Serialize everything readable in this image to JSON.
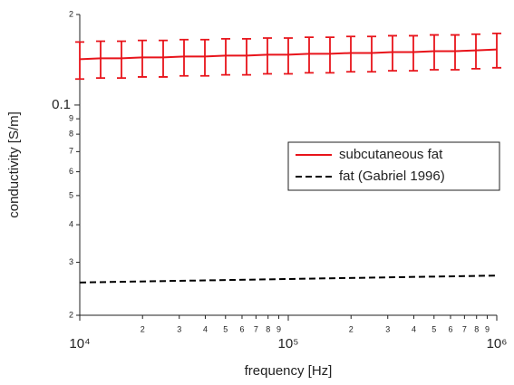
{
  "chart_data": {
    "type": "line",
    "x_label": "frequency [Hz]",
    "y_label": "conductivity [S/m]",
    "xscale": "log",
    "yscale": "log",
    "xlim": [
      10000,
      1000000
    ],
    "ylim": [
      0.02,
      0.2
    ],
    "xticks": [
      {
        "value": 10000,
        "label": "10⁴"
      },
      20000,
      30000,
      40000,
      50000,
      60000,
      70000,
      80000,
      90000,
      {
        "value": 100000,
        "label": "10⁵"
      },
      {
        "value": 200000,
        "label": "2"
      },
      {
        "value": 300000,
        "label": "3"
      },
      {
        "value": 400000,
        "label": "4"
      },
      {
        "value": 500000,
        "label": "5"
      },
      {
        "value": 600000,
        "label": "6"
      },
      {
        "value": 700000,
        "label": "7"
      },
      {
        "value": 800000,
        "label": "8"
      },
      {
        "value": 900000,
        "label": "9"
      },
      {
        "value": 1000000,
        "label": "10⁶"
      }
    ],
    "yticks": [
      {
        "value": 0.02,
        "label": "2"
      },
      {
        "value": 0.03,
        "label": "3"
      },
      {
        "value": 0.04,
        "label": "4"
      },
      {
        "value": 0.05,
        "label": "5"
      },
      {
        "value": 0.06,
        "label": "6"
      },
      {
        "value": 0.07,
        "label": "7"
      },
      {
        "value": 0.08,
        "label": "8"
      },
      {
        "value": 0.09,
        "label": "9"
      },
      0.1,
      {
        "value": 0.2,
        "label": "2"
      }
    ],
    "legend": "upper right",
    "series": [
      {
        "name": "subcutaneous fat",
        "color": "#e8141b",
        "dash": "solid",
        "x": [
          10000,
          12589,
          15849,
          19953,
          25119,
          31623,
          39811,
          50119,
          63096,
          79433,
          100000,
          125893,
          158489,
          199526,
          251189,
          316228,
          398107,
          501187,
          630957,
          794328,
          1000000
        ],
        "values": [
          0.142,
          0.143,
          0.143,
          0.144,
          0.144,
          0.145,
          0.145,
          0.146,
          0.146,
          0.147,
          0.147,
          0.148,
          0.148,
          0.149,
          0.149,
          0.15,
          0.15,
          0.151,
          0.151,
          0.152,
          0.153
        ],
        "errors": [
          0.02,
          0.02,
          0.02,
          0.02,
          0.02,
          0.02,
          0.02,
          0.02,
          0.02,
          0.02,
          0.02,
          0.02,
          0.02,
          0.02,
          0.02,
          0.02,
          0.02,
          0.02,
          0.02,
          0.02,
          0.02
        ]
      },
      {
        "name": "fat (Gabriel 1996)",
        "color": "#000000",
        "dash": "dashed",
        "x": [
          10000,
          100000,
          1000000
        ],
        "values": [
          0.0257,
          0.0264,
          0.0271
        ]
      }
    ]
  }
}
